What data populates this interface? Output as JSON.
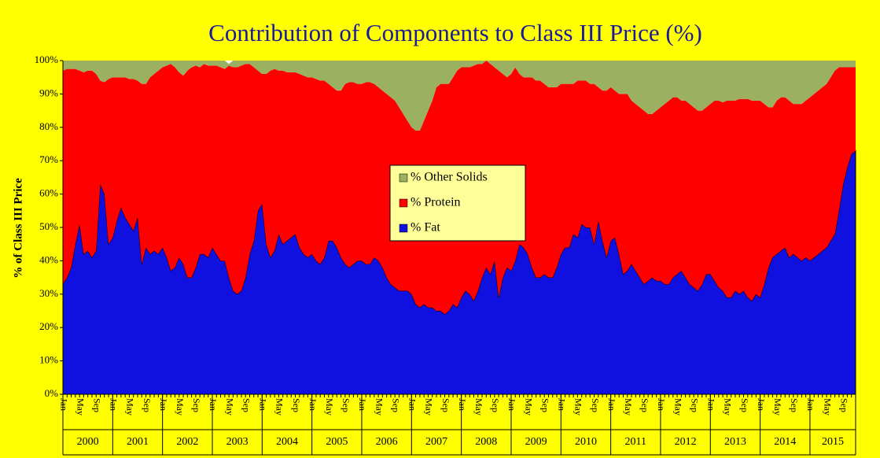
{
  "chart_data": {
    "type": "stacked-area",
    "title": "Contribution of Components to Class III Price (%)",
    "y_label": "% of Class III Price",
    "ylim": [
      0,
      100
    ],
    "yticks": [
      {
        "value": 0,
        "label": "0%"
      },
      {
        "value": 10,
        "label": "10%"
      },
      {
        "value": 20,
        "label": "20%"
      },
      {
        "value": 30,
        "label": "30%"
      },
      {
        "value": 40,
        "label": "40%"
      },
      {
        "value": 50,
        "label": "50%"
      },
      {
        "value": 60,
        "label": "60%"
      },
      {
        "value": 70,
        "label": "70%"
      },
      {
        "value": 80,
        "label": "80%"
      },
      {
        "value": 90,
        "label": "90%"
      },
      {
        "value": 100,
        "label": "100%"
      }
    ],
    "categories": [
      "Jan",
      null,
      null,
      null,
      "May",
      null,
      null,
      null,
      "Sep",
      null,
      null,
      null,
      "Jan",
      null,
      null,
      null,
      "May",
      null,
      null,
      null,
      "Sep",
      null,
      null,
      null,
      "Jan",
      null,
      null,
      null,
      "May",
      null,
      null,
      null,
      "Sep",
      null,
      null,
      null,
      "Jan",
      null,
      null,
      null,
      "May",
      null,
      null,
      null,
      "Sep",
      null,
      null,
      null,
      "Jan",
      null,
      null,
      null,
      "May",
      null,
      null,
      null,
      "Sep",
      null,
      null,
      null,
      "Jan",
      null,
      null,
      null,
      "May",
      null,
      null,
      null,
      "Sep",
      null,
      null,
      null,
      "Jan",
      null,
      null,
      null,
      "May",
      null,
      null,
      null,
      "Sep",
      null,
      null,
      null,
      "Jan",
      null,
      null,
      null,
      "May",
      null,
      null,
      null,
      "Sep",
      null,
      null,
      null,
      "Jan",
      null,
      null,
      null,
      "May",
      null,
      null,
      null,
      "Sep",
      null,
      null,
      null,
      "Jan",
      null,
      null,
      null,
      "May",
      null,
      null,
      null,
      "Sep",
      null,
      null,
      null,
      "Jan",
      null,
      null,
      null,
      "May",
      null,
      null,
      null,
      "Sep",
      null,
      null,
      null,
      "Jan",
      null,
      null,
      null,
      "May",
      null,
      null,
      null,
      "Sep",
      null,
      null,
      null,
      "Jan",
      null,
      null,
      null,
      "May",
      null,
      null,
      null,
      "Sep",
      null,
      null,
      null,
      "Jan",
      null,
      null,
      null,
      "May",
      null,
      null,
      null,
      "Sep",
      null,
      null,
      null,
      "Jan",
      null,
      null,
      null,
      "May",
      null,
      null,
      null,
      "Sep",
      null,
      null,
      null,
      "Jan",
      null,
      null,
      null,
      "May",
      null,
      null,
      null,
      "Sep",
      null,
      null,
      null
    ],
    "year_labels": [
      "2000",
      "2001",
      "2002",
      "2003",
      "2004",
      "2005",
      "2006",
      "2007",
      "2008",
      "2009",
      "2010",
      "2011",
      "2012",
      "2013",
      "2014",
      "2015"
    ],
    "series": [
      {
        "name": "% Fat",
        "color": "#1010e0",
        "values": [
          33,
          35,
          38,
          45,
          51,
          42,
          43,
          41,
          43,
          63,
          60,
          45,
          47,
          52,
          56,
          53,
          51,
          49,
          53,
          39,
          44,
          42,
          43,
          42,
          44,
          41,
          37,
          38,
          41,
          39,
          35,
          35,
          38,
          42,
          42,
          41,
          44,
          42,
          40,
          40,
          35,
          31,
          30,
          31,
          35,
          42,
          46,
          55,
          57,
          45,
          41,
          43,
          48,
          45,
          46,
          47,
          48,
          44,
          42,
          41,
          42,
          40,
          39,
          41,
          46,
          46,
          44,
          41,
          39,
          38,
          39,
          40,
          40,
          39,
          39,
          41,
          40,
          38,
          35,
          33,
          32,
          31,
          31,
          31,
          30,
          27,
          26,
          27,
          26,
          26,
          25,
          25,
          24,
          25,
          27,
          26,
          29,
          31,
          30,
          28,
          31,
          35,
          38,
          36,
          40,
          29,
          35,
          38,
          37,
          40,
          45,
          44,
          42,
          38,
          35,
          35,
          36,
          35,
          35,
          38,
          42,
          44,
          44,
          48,
          47,
          51,
          50,
          50,
          45,
          52,
          46,
          41,
          46,
          47,
          42,
          36,
          37,
          39,
          37,
          35,
          33,
          34,
          35,
          34,
          34,
          33,
          33,
          35,
          36,
          37,
          35,
          33,
          32,
          31,
          33,
          36,
          36,
          34,
          32,
          31,
          29,
          29,
          31,
          30,
          31,
          29,
          28,
          30,
          29,
          33,
          38,
          41,
          42,
          43,
          44,
          41,
          42,
          41,
          40,
          41,
          40,
          41,
          42,
          43,
          44,
          46,
          48,
          55,
          63,
          68,
          72,
          73
        ]
      },
      {
        "name": "% Protein",
        "color": "#ff0000",
        "values": [
          64,
          62.5,
          59.5,
          52.5,
          46,
          54.5,
          54,
          56,
          53,
          31,
          33.5,
          49.5,
          48,
          43,
          39,
          42,
          43.5,
          45.5,
          41,
          54,
          49,
          53,
          53,
          55,
          54,
          57.5,
          62,
          60,
          55.5,
          56.5,
          62,
          63,
          60.5,
          56,
          57,
          57.5,
          54.5,
          56.5,
          58,
          57.5,
          63.5,
          67,
          68,
          67.5,
          64,
          57,
          52,
          42,
          39,
          51,
          56,
          54.5,
          49,
          52,
          50.5,
          49.5,
          48.5,
          52,
          53.5,
          54,
          53,
          54.5,
          55,
          53,
          47,
          46,
          47,
          50,
          54,
          55.5,
          54.5,
          53,
          53,
          54.5,
          54.5,
          52,
          52,
          53,
          55,
          56,
          56,
          55,
          53,
          51,
          50,
          52,
          53,
          55,
          59,
          62,
          67,
          68,
          69,
          68,
          68,
          71,
          69,
          67,
          68,
          70.5,
          68,
          64,
          62,
          63,
          58,
          68,
          61,
          57,
          59,
          58,
          51,
          51,
          53,
          57,
          59,
          59,
          57,
          57,
          57,
          54,
          51,
          49,
          49,
          45,
          47,
          43,
          44,
          43,
          48,
          40,
          45,
          50,
          46,
          44,
          48,
          54,
          53,
          49,
          50,
          51,
          52,
          50,
          49,
          51,
          52,
          54,
          55,
          54,
          53,
          51,
          53,
          54,
          54,
          54,
          52,
          50,
          51,
          54,
          56,
          56.5,
          59,
          59,
          57,
          58.5,
          57.5,
          59.5,
          60,
          58,
          59,
          54,
          48,
          45,
          46,
          46,
          45,
          47,
          45,
          46,
          47,
          47,
          49,
          49,
          49,
          49,
          49,
          49,
          49,
          43,
          35,
          30,
          26,
          25
        ]
      },
      {
        "name": "% Other Solids",
        "color": "#9bb060",
        "values": [
          3,
          2.5,
          2.5,
          2.5,
          3,
          3.5,
          3,
          3,
          4,
          6,
          6.5,
          5.5,
          5,
          5,
          5,
          5,
          5.5,
          5.5,
          6,
          7,
          7,
          5,
          4,
          3,
          2,
          1.5,
          1,
          2,
          3.5,
          4.5,
          3,
          2,
          1.5,
          2,
          1,
          1.5,
          1.5,
          1.5,
          2,
          2.5,
          0.5,
          2,
          2,
          1.5,
          1,
          1,
          2,
          3,
          4,
          4,
          3,
          2.5,
          3,
          3,
          3.5,
          3.5,
          3.5,
          4,
          4.5,
          5,
          5,
          5.5,
          6,
          6,
          7,
          8,
          9,
          9,
          7,
          6.5,
          6.5,
          7,
          7,
          6.5,
          6.5,
          7,
          8,
          9,
          10,
          11,
          12,
          14,
          16,
          18,
          20,
          21,
          21,
          18,
          15,
          12,
          8,
          7,
          7,
          7,
          5,
          3,
          2,
          2,
          2,
          1.5,
          1,
          1,
          0,
          1,
          2,
          3,
          4,
          5,
          4,
          2,
          4,
          5,
          5,
          5,
          6,
          6,
          7,
          8,
          8,
          8,
          7,
          7,
          7,
          7,
          6,
          6,
          6,
          7,
          7,
          8,
          9,
          9,
          8,
          9,
          10,
          10,
          10,
          12,
          13,
          14,
          15,
          16,
          16,
          15,
          14,
          13,
          12,
          11,
          11,
          12,
          12,
          13,
          14,
          15,
          15,
          14,
          13,
          12,
          12,
          12.5,
          12,
          12,
          12,
          11.5,
          11.5,
          11.5,
          12,
          12,
          12,
          13,
          14,
          14,
          12,
          11,
          11,
          12,
          13,
          13,
          13,
          12,
          11,
          10,
          9,
          8,
          7,
          5,
          3,
          2,
          2,
          2,
          2,
          2
        ]
      }
    ]
  }
}
